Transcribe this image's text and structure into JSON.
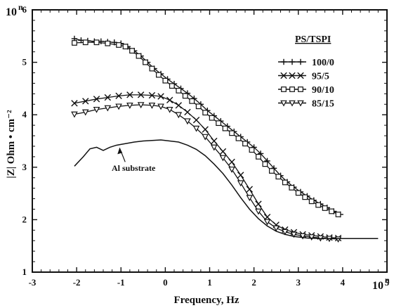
{
  "chart_data": {
    "type": "line",
    "title": "",
    "xlabel": "Frequency, Hz",
    "ylabel": "|Z| Ohm • cm⁻²",
    "x_tick_labels": [
      "-3",
      "-2",
      "-1",
      "0",
      "1",
      "2",
      "3",
      "4",
      "5"
    ],
    "y_tick_labels": [
      "1",
      "2",
      "3",
      "4",
      "5",
      "6"
    ],
    "x_unit_label": "10",
    "x_unit_exponent": "n",
    "y_unit_label": "10",
    "y_unit_exponent": "n",
    "xlim": [
      -3,
      5
    ],
    "ylim": [
      1,
      6
    ],
    "grid": false,
    "legend_position": "top-right",
    "legend_title": "PS/TSPI",
    "series": [
      {
        "name": "100/0",
        "marker": "plus",
        "x": [
          -2.05,
          -1.9,
          -1.75,
          -1.6,
          -1.45,
          -1.3,
          -1.15,
          -1.0,
          -0.85,
          -0.7,
          -0.55,
          -0.4,
          -0.25,
          -0.1,
          0.05,
          0.2,
          0.35,
          0.5,
          0.65,
          0.8,
          0.95,
          1.1,
          1.25,
          1.4,
          1.55,
          1.7,
          1.85,
          2.0,
          2.15,
          2.3,
          2.45,
          2.6,
          2.75,
          2.9,
          3.05,
          3.2,
          3.35,
          3.5,
          3.65,
          3.8,
          3.95
        ],
        "y": [
          5.45,
          5.42,
          5.41,
          5.4,
          5.4,
          5.39,
          5.38,
          5.36,
          5.3,
          5.22,
          5.12,
          5.0,
          4.88,
          4.78,
          4.68,
          4.59,
          4.5,
          4.41,
          4.31,
          4.2,
          4.08,
          3.98,
          3.88,
          3.78,
          3.68,
          3.58,
          3.48,
          3.38,
          3.26,
          3.12,
          2.98,
          2.84,
          2.72,
          2.62,
          2.53,
          2.45,
          2.37,
          2.3,
          2.23,
          2.16,
          2.1
        ]
      },
      {
        "name": "95/5",
        "marker": "x",
        "x": [
          -2.05,
          -1.8,
          -1.55,
          -1.3,
          -1.05,
          -0.8,
          -0.55,
          -0.3,
          -0.1,
          0.1,
          0.3,
          0.5,
          0.7,
          0.9,
          1.1,
          1.3,
          1.5,
          1.7,
          1.9,
          2.1,
          2.3,
          2.5,
          2.7,
          2.9,
          3.1,
          3.3,
          3.5,
          3.7,
          3.9
        ],
        "y": [
          4.22,
          4.26,
          4.3,
          4.33,
          4.36,
          4.38,
          4.38,
          4.37,
          4.35,
          4.28,
          4.18,
          4.05,
          3.9,
          3.72,
          3.5,
          3.3,
          3.1,
          2.85,
          2.58,
          2.3,
          2.05,
          1.9,
          1.81,
          1.76,
          1.72,
          1.7,
          1.68,
          1.66,
          1.65
        ]
      },
      {
        "name": "90/10",
        "marker": "square",
        "x": [
          -2.05,
          -1.8,
          -1.55,
          -1.3,
          -1.05,
          -0.9,
          -0.75,
          -0.6,
          -0.45,
          -0.3,
          -0.15,
          0.0,
          0.15,
          0.3,
          0.45,
          0.6,
          0.75,
          0.9,
          1.05,
          1.2,
          1.35,
          1.5,
          1.65,
          1.8,
          1.95,
          2.1,
          2.25,
          2.4,
          2.55,
          2.7,
          2.85,
          3.0,
          3.15,
          3.3,
          3.45,
          3.6,
          3.75,
          3.9
        ],
        "y": [
          5.37,
          5.38,
          5.38,
          5.36,
          5.33,
          5.3,
          5.22,
          5.12,
          5.0,
          4.88,
          4.76,
          4.65,
          4.55,
          4.46,
          4.36,
          4.26,
          4.16,
          4.04,
          3.94,
          3.84,
          3.74,
          3.65,
          3.55,
          3.45,
          3.33,
          3.2,
          3.06,
          2.93,
          2.82,
          2.71,
          2.61,
          2.51,
          2.43,
          2.35,
          2.28,
          2.22,
          2.16,
          2.1
        ]
      },
      {
        "name": "85/15",
        "marker": "triangle",
        "x": [
          -2.05,
          -1.8,
          -1.55,
          -1.3,
          -1.05,
          -0.8,
          -0.55,
          -0.3,
          -0.1,
          0.1,
          0.3,
          0.5,
          0.7,
          0.9,
          1.1,
          1.3,
          1.5,
          1.7,
          1.9,
          2.1,
          2.3,
          2.5,
          2.7,
          2.9,
          3.1,
          3.3,
          3.5,
          3.7,
          3.9
        ],
        "y": [
          4.01,
          4.05,
          4.1,
          4.13,
          4.16,
          4.18,
          4.19,
          4.18,
          4.16,
          4.1,
          4.0,
          3.88,
          3.74,
          3.58,
          3.38,
          3.18,
          2.96,
          2.7,
          2.42,
          2.16,
          1.96,
          1.84,
          1.77,
          1.72,
          1.69,
          1.67,
          1.65,
          1.64,
          1.63
        ]
      },
      {
        "name": "Al substrate",
        "marker": "none",
        "x": [
          -2.05,
          -1.85,
          -1.7,
          -1.55,
          -1.4,
          -1.25,
          -1.1,
          -0.9,
          -0.7,
          -0.5,
          -0.3,
          -0.1,
          0.1,
          0.3,
          0.5,
          0.7,
          0.9,
          1.1,
          1.3,
          1.5,
          1.7,
          1.9,
          2.1,
          2.3,
          2.5,
          2.7,
          2.9,
          3.2,
          3.5,
          3.8,
          4.1,
          4.4,
          4.8
        ],
        "y": [
          3.02,
          3.2,
          3.35,
          3.38,
          3.32,
          3.38,
          3.42,
          3.45,
          3.48,
          3.5,
          3.51,
          3.52,
          3.5,
          3.48,
          3.42,
          3.34,
          3.22,
          3.06,
          2.88,
          2.66,
          2.42,
          2.2,
          2.02,
          1.88,
          1.78,
          1.72,
          1.68,
          1.65,
          1.64,
          1.64,
          1.64,
          1.64,
          1.64
        ]
      }
    ],
    "annotation": {
      "text": "Al substrate",
      "x": -1.0,
      "y": 3.02
    }
  }
}
